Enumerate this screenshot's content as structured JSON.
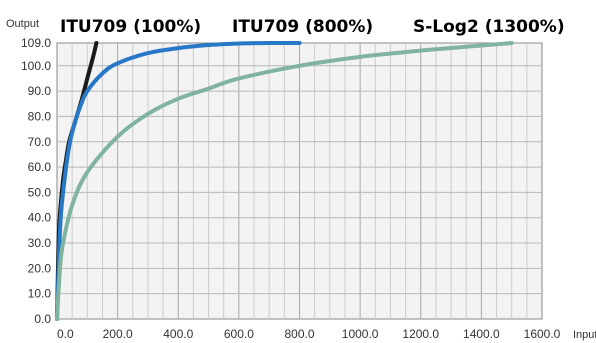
{
  "chart_data": {
    "type": "line",
    "ylabel": "Output",
    "xlabel": "Input",
    "xlim": [
      0,
      1600
    ],
    "ylim": [
      0,
      109
    ],
    "grid": true,
    "x_ticks": [
      "0.0",
      "200.0",
      "400.0",
      "600.0",
      "800.0",
      "1000.0",
      "1200.0",
      "1400.0",
      "1600.0"
    ],
    "y_ticks": [
      "0.0",
      "10.0",
      "20.0",
      "30.0",
      "40.0",
      "50.0",
      "60.0",
      "70.0",
      "80.0",
      "90.0",
      "100.0",
      "109.0"
    ],
    "series": [
      {
        "name": "ITU709 (100%)",
        "color": "#1a1a1a",
        "x": [
          0,
          5,
          10,
          20,
          30,
          40,
          60,
          80,
          100,
          120,
          130
        ],
        "y": [
          0,
          30,
          42,
          55,
          63,
          70,
          78,
          86,
          95,
          104,
          109
        ]
      },
      {
        "name": "ITU709 (800%)",
        "color": "#2878c8",
        "x": [
          0,
          10,
          20,
          40,
          60,
          80,
          100,
          150,
          200,
          300,
          400,
          500,
          600,
          700,
          800
        ],
        "y": [
          0,
          35,
          50,
          68,
          78,
          85,
          90,
          97,
          101,
          105,
          107,
          108.2,
          108.8,
          109,
          109
        ]
      },
      {
        "name": "S-Log2 (1300%)",
        "color": "#80b4a0",
        "x": [
          0,
          10,
          20,
          50,
          100,
          200,
          300,
          400,
          500,
          600,
          800,
          1000,
          1200,
          1400,
          1500
        ],
        "y": [
          0,
          20,
          30,
          45,
          58,
          72,
          81,
          87,
          91,
          95,
          100,
          103.5,
          106,
          108,
          109
        ]
      }
    ],
    "labels": [
      "ITU709 (100%)",
      "ITU709 (800%)",
      "S-Log2 (1300%)"
    ]
  }
}
